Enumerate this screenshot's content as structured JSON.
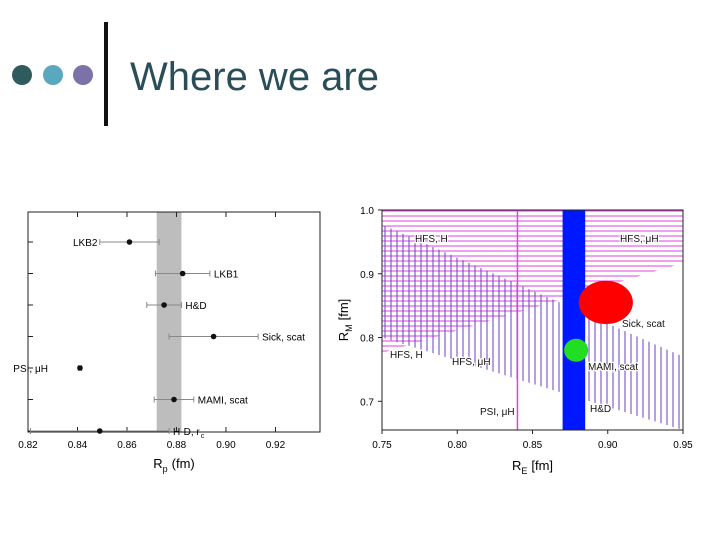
{
  "header": {
    "title": "Where we are"
  },
  "chart_data": [
    {
      "type": "dotplot",
      "x_label": {
        "main": "R",
        "sub": "p",
        "unit": "(fm)"
      },
      "xlim": [
        0.82,
        0.938
      ],
      "xticks": [
        0.82,
        0.84,
        0.86,
        0.88,
        {
          "value": 0.9,
          "label": "0.90"
        },
        0.92
      ],
      "band": {
        "x": [
          0.872,
          0.882
        ],
        "color": "#bdbdbd"
      },
      "points": [
        {
          "label": "LKB2",
          "value": 0.861,
          "error": 0.012
        },
        {
          "label": "LKB1",
          "value": 0.8825,
          "error": 0.011
        },
        {
          "label": "H&D",
          "value": 0.875,
          "error": 0.007
        },
        {
          "label": "Sick, scat",
          "value": 0.895,
          "error": 0.018
        },
        {
          "label": "PSI, μH",
          "value": 0.841,
          "error": 0.0007
        },
        {
          "label": "MAMI, scat",
          "value": 0.879,
          "error": 0.008
        },
        {
          "label": "H-D, r",
          "label_sub": "c",
          "value": 0.849,
          "error": 0.028
        }
      ]
    },
    {
      "type": "regions",
      "x_label": {
        "main": "R",
        "sub": "E",
        "unit": "[fm]"
      },
      "y_label": {
        "main": "R",
        "sub": "M",
        "unit": "[fm]"
      },
      "xlim": [
        0.75,
        0.95
      ],
      "ylim": [
        0.655,
        1.0
      ],
      "xticks": [
        0.75,
        {
          "value": 0.8,
          "label": "0.80"
        },
        0.85,
        {
          "value": 0.9,
          "label": "0.90"
        },
        0.95
      ],
      "yticks": [
        0.7,
        0.8,
        0.9,
        {
          "value": 1.0,
          "label": "1.0"
        }
      ],
      "regions": [
        {
          "hatch": "horizontal",
          "color": "#e040e0",
          "x": [
            0.75,
            0.95,
            0.95,
            0.75
          ],
          "y": [
            1.0,
            1.0,
            0.917,
            0.776
          ]
        },
        {
          "hatch": "vertical",
          "color": "#6a3fc0",
          "x": [
            0.75,
            0.95,
            0.95,
            0.75
          ],
          "y": [
            0.977,
            0.77,
            0.655,
            0.8
          ]
        }
      ],
      "vlines": [
        {
          "x": 0.84,
          "color": "#e040e0"
        }
      ],
      "bands": [
        {
          "x": [
            0.87,
            0.885
          ],
          "color": "#0018ff"
        }
      ],
      "ellipses": [
        {
          "color": "#ff0000",
          "x": 0.8987,
          "y": 0.855,
          "rx": 0.018,
          "ry": 0.034
        },
        {
          "color": "#22dd22",
          "x": 0.879,
          "y": 0.78,
          "rx": 0.008,
          "ry": 0.018
        }
      ],
      "annotations": [
        {
          "text": "HFS, H"
        },
        {
          "text": "HFS, μH"
        },
        {
          "text": "Sick, scat"
        },
        {
          "text": "HFS, H"
        },
        {
          "text": "HFS, μH"
        },
        {
          "text": "MAMI, scat"
        },
        {
          "text": "PSI, μH"
        },
        {
          "text": "H&D"
        }
      ]
    }
  ]
}
